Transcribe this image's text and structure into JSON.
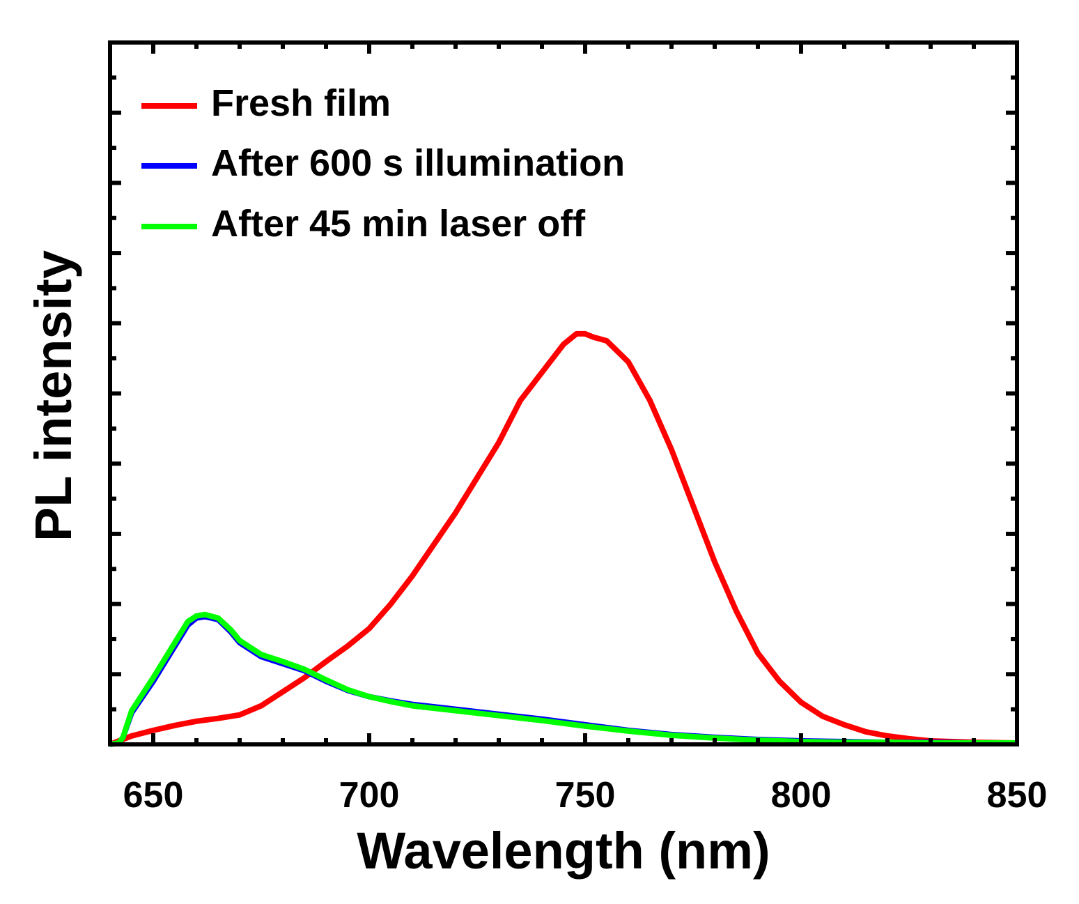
{
  "chart_data": {
    "type": "line",
    "title": "",
    "xlabel": "Wavelength (nm)",
    "ylabel": "PL intensity",
    "xlim": [
      640,
      850
    ],
    "ylim": [
      0,
      1.0
    ],
    "xticks": [
      650,
      700,
      750,
      800,
      850
    ],
    "xtick_labels": [
      "650",
      "700",
      "750",
      "800",
      "850"
    ],
    "yticks": [
      0.1,
      0.2,
      0.3,
      0.4,
      0.5,
      0.6,
      0.7,
      0.8,
      0.9
    ],
    "grid": false,
    "legend_position": "top-left",
    "series": [
      {
        "name": "Fresh film",
        "color": "#ff0000",
        "x": [
          640,
          645,
          650,
          655,
          660,
          665,
          670,
          675,
          680,
          685,
          690,
          695,
          700,
          705,
          710,
          715,
          720,
          725,
          730,
          735,
          740,
          745,
          748,
          750,
          752,
          755,
          760,
          765,
          770,
          775,
          780,
          785,
          790,
          795,
          800,
          805,
          810,
          815,
          820,
          825,
          830,
          840,
          850
        ],
        "y": [
          0.0,
          0.012,
          0.02,
          0.027,
          0.033,
          0.037,
          0.042,
          0.055,
          0.075,
          0.095,
          0.118,
          0.14,
          0.165,
          0.2,
          0.24,
          0.285,
          0.33,
          0.38,
          0.43,
          0.49,
          0.53,
          0.57,
          0.585,
          0.585,
          0.58,
          0.575,
          0.545,
          0.49,
          0.42,
          0.34,
          0.26,
          0.19,
          0.13,
          0.09,
          0.06,
          0.04,
          0.028,
          0.018,
          0.012,
          0.008,
          0.005,
          0.003,
          0.002
        ]
      },
      {
        "name": "After 600 s illumination",
        "color": "#0000ff",
        "x": [
          640,
          642,
          643,
          645,
          650,
          655,
          658,
          660,
          662,
          665,
          668,
          670,
          675,
          680,
          685,
          690,
          695,
          700,
          705,
          710,
          720,
          730,
          740,
          750,
          760,
          770,
          780,
          790,
          800,
          810,
          820,
          830,
          840,
          850
        ],
        "y": [
          0.0,
          0.002,
          0.01,
          0.045,
          0.09,
          0.14,
          0.17,
          0.18,
          0.182,
          0.178,
          0.16,
          0.145,
          0.125,
          0.115,
          0.105,
          0.09,
          0.077,
          0.068,
          0.062,
          0.057,
          0.05,
          0.043,
          0.036,
          0.028,
          0.02,
          0.014,
          0.01,
          0.007,
          0.005,
          0.004,
          0.003,
          0.003,
          0.002,
          0.002
        ]
      },
      {
        "name": "After 45 min laser off",
        "color": "#00ff00",
        "x": [
          640,
          642,
          643,
          645,
          650,
          655,
          658,
          660,
          662,
          665,
          668,
          670,
          675,
          680,
          685,
          690,
          695,
          700,
          705,
          710,
          720,
          730,
          740,
          750,
          760,
          770,
          780,
          790,
          800,
          810,
          820,
          830,
          840,
          850
        ],
        "y": [
          0.0,
          0.002,
          0.01,
          0.048,
          0.095,
          0.145,
          0.175,
          0.183,
          0.185,
          0.18,
          0.163,
          0.148,
          0.128,
          0.118,
          0.107,
          0.092,
          0.078,
          0.068,
          0.061,
          0.055,
          0.048,
          0.041,
          0.034,
          0.026,
          0.019,
          0.013,
          0.009,
          0.006,
          0.004,
          0.003,
          0.003,
          0.002,
          0.002,
          0.002
        ]
      }
    ]
  }
}
